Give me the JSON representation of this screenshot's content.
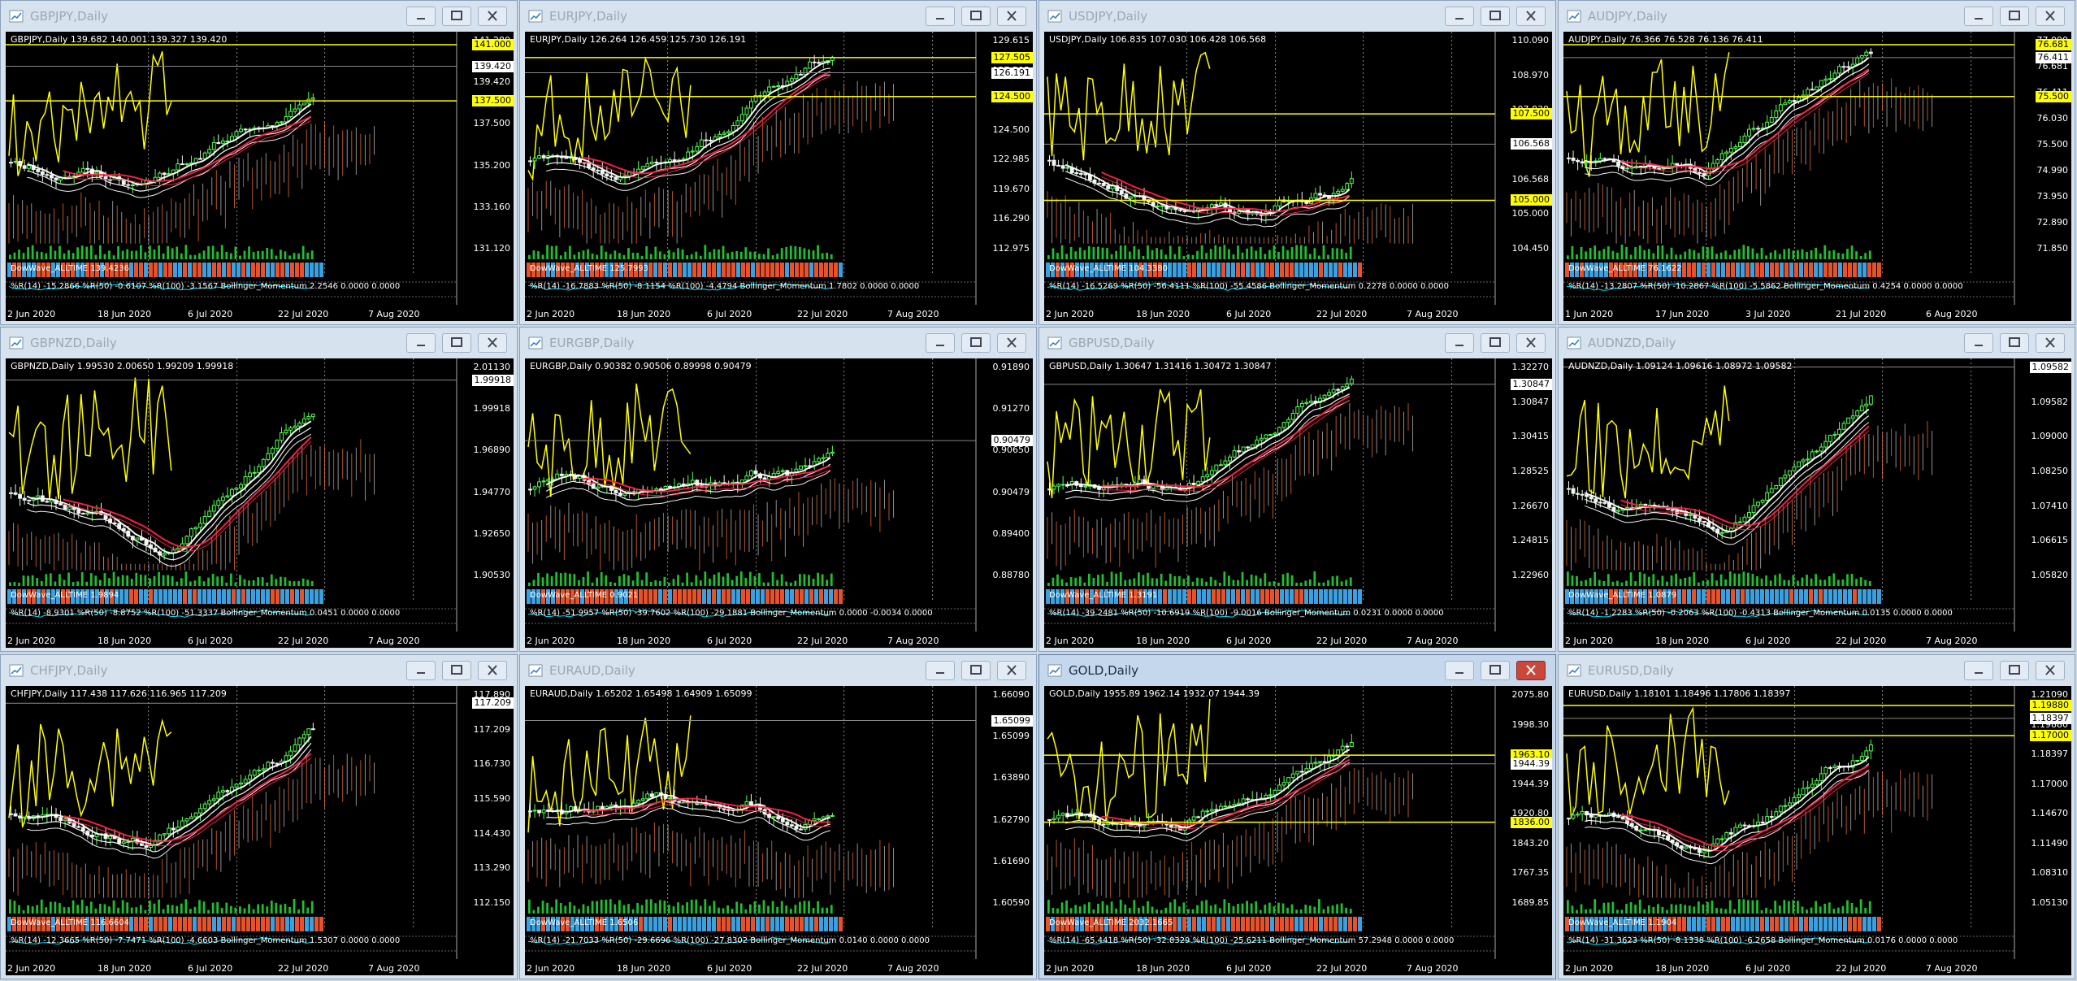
{
  "windows": [
    {
      "title": "GBPJPY,Daily",
      "info": "GBPJPY,Daily  139.682 140.001 139.327 139.420",
      "axis": [
        "141.280",
        "139.420",
        "137.500",
        "135.200",
        "133.160",
        "131.120"
      ],
      "tags": [
        {
          "v": "141.000",
          "c": "y",
          "p": 0.06
        },
        {
          "v": "139.420",
          "c": "w",
          "p": 0.16
        },
        {
          "v": "137.500",
          "c": "y",
          "p": 0.32
        }
      ],
      "dates": [
        "2 Jun 2020",
        "18 Jun 2020",
        "6 Jul 2020",
        "22 Jul 2020",
        "7 Aug 2020"
      ],
      "band": "DowWave_ALLTIME 139.4236",
      "ind": "%R(14) -15.2866  %R(50) -0.6107  %R(100) -3.1567  Bollinger_Momentum 2.2546 0.0000 0.0000",
      "bandColor": "#e8522a",
      "trend": "up",
      "seed": 1
    },
    {
      "title": "EURJPY,Daily",
      "info": "EURJPY,Daily  126.264 126.459 125.730 126.191",
      "axis": [
        "129.615",
        "127.505",
        "126.191",
        "124.500",
        "122.985",
        "119.670",
        "116.290",
        "112.975"
      ],
      "tags": [
        {
          "v": "127.505",
          "c": "y",
          "p": 0.12
        },
        {
          "v": "126.191",
          "c": "w",
          "p": 0.19
        },
        {
          "v": "124.500",
          "c": "y",
          "p": 0.3
        }
      ],
      "dates": [
        "2 Jun 2020",
        "18 Jun 2020",
        "6 Jul 2020",
        "22 Jul 2020",
        "7 Aug 2020"
      ],
      "band": "DowWave_ALLTIME 125.7993",
      "ind": "%R(14) -16.7883  %R(50) -8.1154  %R(100) -4.4794  Bollinger_Momentum 1.7802 0.0000 0.0000",
      "bandColor": "#e8522a",
      "trend": "up",
      "seed": 2
    },
    {
      "title": "USDJPY,Daily",
      "info": "USDJPY,Daily  106.835 107.030 106.428 106.568",
      "axis": [
        "110.090",
        "108.970",
        "107.830",
        "107.500",
        "106.568",
        "105.000",
        "104.450"
      ],
      "tags": [
        {
          "v": "107.500",
          "c": "y",
          "p": 0.38
        },
        {
          "v": "106.568",
          "c": "w",
          "p": 0.52
        },
        {
          "v": "105.000",
          "c": "y",
          "p": 0.78
        }
      ],
      "dates": [
        "2 Jun 2020",
        "18 Jun 2020",
        "6 Jul 2020",
        "22 Jul 2020",
        "7 Aug 2020"
      ],
      "band": "DowWave_ALLTIME 104.3380",
      "ind": "%R(14) -16.5269  %R(50) -56.4111  %R(100) -55.4586  Bollinger_Momentum 0.2278 0.0000 0.0000",
      "bandColor": "#3aa0e0",
      "trend": "down",
      "seed": 3
    },
    {
      "title": "AUDJPY,Daily",
      "info": "AUDJPY,Daily  76.366 76.528 76.136 76.411",
      "axis": [
        "77.090",
        "76.681",
        "76.411",
        "76.030",
        "75.500",
        "74.990",
        "73.950",
        "72.890",
        "71.850"
      ],
      "tags": [
        {
          "v": "76.681",
          "c": "y",
          "p": 0.06
        },
        {
          "v": "76.411",
          "c": "w",
          "p": 0.12
        },
        {
          "v": "75.500",
          "c": "y",
          "p": 0.3
        }
      ],
      "dates": [
        "1 Jun 2020",
        "17 Jun 2020",
        "3 Jul 2020",
        "21 Jul 2020",
        "6 Aug 2020"
      ],
      "band": "DowWave_ALLTIME 76.1622",
      "ind": "%R(14) -13.2807  %R(50) -10.2867  %R(100) -5.5862  Bollinger_Momentum 0.4254 0.0000 0.0000",
      "bandColor": "#e8522a",
      "trend": "up",
      "seed": 4
    },
    {
      "title": "GBPNZD,Daily",
      "info": "GBPNZD,Daily  1.99530 2.00650 1.99209 1.99918",
      "axis": [
        "2.01130",
        "1.99918",
        "1.96890",
        "1.94770",
        "1.92650",
        "1.90530"
      ],
      "tags": [
        {
          "v": "1.99918",
          "c": "w",
          "p": 0.1
        }
      ],
      "dates": [
        "2 Jun 2020",
        "18 Jun 2020",
        "6 Jul 2020",
        "22 Jul 2020",
        "7 Aug 2020"
      ],
      "band": "DowWave_ALLTIME 1.9894",
      "ind": "%R(14) -8.9301  %R(50) -8.8752  %R(100) -51.3337  Bollinger_Momentum 0.0451 0.0000 0.0000",
      "bandColor": "#3aa0e0",
      "trend": "vup",
      "seed": 5
    },
    {
      "title": "EURGBP,Daily",
      "info": "EURGBP,Daily  0.90382 0.90506 0.89998 0.90479",
      "axis": [
        "0.91890",
        "0.91270",
        "0.90650",
        "0.90479",
        "0.89400",
        "0.88780"
      ],
      "tags": [
        {
          "v": "0.90479",
          "c": "w",
          "p": 0.38
        }
      ],
      "dates": [
        "2 Jun 2020",
        "18 Jun 2020",
        "6 Jul 2020",
        "22 Jul 2020",
        "7 Aug 2020"
      ],
      "band": "DowWave_ALLTIME 0.9021",
      "ind": "%R(14) -51.9957  %R(50) -39.7602  %R(100) -29.1881  Bollinger_Momentum 0.0000 -0.0034 0.0000",
      "bandColor": "#e8522a",
      "trend": "flat",
      "seed": 6
    },
    {
      "title": "GBPUSD,Daily",
      "info": "GBPUSD,Daily  1.30647 1.31416 1.30472 1.30847",
      "axis": [
        "1.32270",
        "1.30847",
        "1.30415",
        "1.28525",
        "1.26670",
        "1.24815",
        "1.22960"
      ],
      "tags": [
        {
          "v": "1.30847",
          "c": "w",
          "p": 0.12
        }
      ],
      "dates": [
        "2 Jun 2020",
        "18 Jun 2020",
        "6 Jul 2020",
        "22 Jul 2020",
        "7 Aug 2020"
      ],
      "band": "DowWave_ALLTIME 1.3191",
      "ind": "%R(14) -39.2481  %R(50) -10.6919  %R(100) -9.0016  Bollinger_Momentum 0.0231 0.0000 0.0000",
      "bandColor": "#3aa0e0",
      "trend": "up",
      "seed": 7
    },
    {
      "title": "AUDNZD,Daily",
      "info": "AUDNZD,Daily  1.09124 1.09616 1.08972 1.09582",
      "axis": [
        "1.09700",
        "1.09582",
        "1.09000",
        "1.08250",
        "1.07410",
        "1.06615",
        "1.05820"
      ],
      "tags": [
        {
          "v": "1.09582",
          "c": "w",
          "p": 0.04
        }
      ],
      "dates": [
        "2 Jun 2020",
        "18 Jun 2020",
        "6 Jul 2020",
        "22 Jul 2020",
        "7 Aug 2020"
      ],
      "band": "DowWave_ALLTIME 1.0879",
      "ind": "%R(14) -1.2283  %R(50) -0.2063  %R(100) -0.4313  Bollinger_Momentum 0.0135 0.0000 0.0000",
      "bandColor": "#3aa0e0",
      "trend": "vup",
      "seed": 8
    },
    {
      "title": "CHFJPY,Daily",
      "info": "CHFJPY,Daily  117.438 117.626 116.965 117.209",
      "axis": [
        "117.890",
        "117.209",
        "116.730",
        "115.590",
        "114.430",
        "113.290",
        "112.150"
      ],
      "tags": [
        {
          "v": "117.209",
          "c": "w",
          "p": 0.08
        }
      ],
      "dates": [
        "2 Jun 2020",
        "18 Jun 2020",
        "6 Jul 2020",
        "22 Jul 2020",
        "7 Aug 2020"
      ],
      "band": "DowWave_ALLTIME 116.6604",
      "ind": "%R(14) -12.3665  %R(50) -7.7471  %R(100) -4.6603  Bollinger_Momentum 1.5307 0.0000 0.0000",
      "bandColor": "#e8522a",
      "trend": "up",
      "seed": 9
    },
    {
      "title": "EURAUD,Daily",
      "info": "EURAUD,Daily  1.65202 1.65498 1.64909 1.65099",
      "axis": [
        "1.66090",
        "1.65099",
        "1.63890",
        "1.62790",
        "1.61690",
        "1.60590"
      ],
      "tags": [
        {
          "v": "1.65099",
          "c": "w",
          "p": 0.16
        }
      ],
      "dates": [
        "2 Jun 2020",
        "18 Jun 2020",
        "6 Jul 2020",
        "22 Jul 2020",
        "7 Aug 2020"
      ],
      "band": "DowWave_ALLTIME 1.6506",
      "ind": "%R(14) -21.7033  %R(50) -29.6696  %R(100) -27.8302  Bollinger_Momentum 0.0140 0.0000 0.0000",
      "bandColor": "#3aa0e0",
      "trend": "flat",
      "seed": 10
    },
    {
      "title": "GOLD,Daily",
      "info": "GOLD,Daily  1955.89 1962.14 1932.07 1944.39",
      "axis": [
        "2075.80",
        "1998.30",
        "1963.10",
        "1944.39",
        "1920.80",
        "1843.20",
        "1767.35",
        "1689.85"
      ],
      "tags": [
        {
          "v": "1963.10",
          "c": "y",
          "p": 0.32
        },
        {
          "v": "1944.39",
          "c": "w",
          "p": 0.36
        },
        {
          "v": "1836.00",
          "c": "y",
          "p": 0.63
        }
      ],
      "dates": [
        "2 Jun 2020",
        "18 Jun 2020",
        "6 Jul 2020",
        "22 Jul 2020",
        "7 Aug 2020"
      ],
      "band": "DowWave_ALLTIME 2032.1665",
      "ind": "%R(14) -65.4418  %R(50) -32.8329  %R(100) -25.6211  Bollinger_Momentum 57.2948 0.0000 0.0000",
      "bandColor": "#e8522a",
      "trend": "up",
      "seed": 11
    },
    {
      "title": "EURUSD,Daily",
      "info": "EURUSD,Daily  1.18101 1.18496 1.17806 1.18397",
      "axis": [
        "1.21090",
        "1.19880",
        "1.18397",
        "1.17000",
        "1.14670",
        "1.11490",
        "1.08310",
        "1.05130"
      ],
      "tags": [
        {
          "v": "1.19880",
          "c": "y",
          "p": 0.09
        },
        {
          "v": "1.18397",
          "c": "w",
          "p": 0.15
        },
        {
          "v": "1.17000",
          "c": "y",
          "p": 0.23
        }
      ],
      "dates": [
        "2 Jun 2020",
        "18 Jun 2020",
        "6 Jul 2020",
        "22 Jul 2020",
        "7 Aug 2020"
      ],
      "band": "DowWave_ALLTIME 1.1904",
      "ind": "%R(14) -31.3623  %R(50) -8.1338  %R(100) -6.2658  Bollinger_Momentum 0.0176 0.0000 0.0000",
      "bandColor": "#3aa0e0",
      "trend": "up",
      "seed": 12
    }
  ],
  "active_window": "GOLD,Daily",
  "colors": {
    "bull": "#55ff55",
    "bear": "#eef7ee",
    "ma_fast": "#ffffff",
    "ma_slow": "#ff2244",
    "cloud_up": "#ff7a33",
    "cloud_dn": "#cccccc",
    "stoch": "#ffff00",
    "indicator": "#00e5ff"
  }
}
